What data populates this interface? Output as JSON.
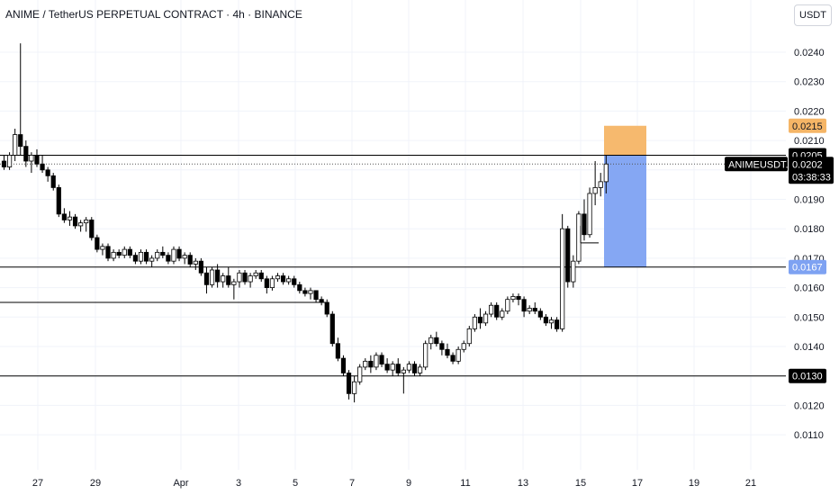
{
  "header": {
    "title": "ANIME / TetherUS PERPETUAL CONTRACT · 4h · BINANCE",
    "currency_button": "USDT"
  },
  "colors": {
    "up": "#ffffff",
    "down": "#000000",
    "candle_outline": "#000000",
    "grid": "#f0f3fa",
    "target_zone": "#f5b566",
    "stop_zone": "#7ea2f2",
    "hline": "#000000"
  },
  "price_axis": {
    "ticks": [
      "0.0240",
      "0.0230",
      "0.0220",
      "0.0210",
      "0.0200",
      "0.0190",
      "0.0180",
      "0.0170",
      "0.0160",
      "0.0150",
      "0.0140",
      "0.0130",
      "0.0120",
      "0.0110"
    ],
    "tick_values": [
      0.024,
      0.023,
      0.022,
      0.021,
      0.02,
      0.019,
      0.018,
      0.017,
      0.016,
      0.015,
      0.014,
      0.013,
      0.012,
      0.011
    ]
  },
  "date_axis": {
    "labels": [
      "27",
      "29",
      "Apr",
      "3",
      "5",
      "7",
      "9",
      "11",
      "13",
      "15",
      "17",
      "19",
      "21"
    ]
  },
  "price_tags": {
    "target": {
      "label": "0.0215",
      "value": 0.0215
    },
    "last_price": {
      "label": "0.0202",
      "value": 0.0202
    },
    "countdown": "03:38:33",
    "symbol": "ANIMEUSDT.P",
    "resistance": {
      "label": "0.0205",
      "value": 0.0205
    },
    "stop": {
      "label": "0.0167",
      "value": 0.0167
    },
    "support": {
      "label": "0.0130",
      "value": 0.013
    }
  },
  "horizontal_lines": [
    0.0205,
    0.0167,
    0.0155,
    0.013
  ],
  "position_tool": {
    "entry": 0.0205,
    "target": 0.0215,
    "stop": 0.0167
  },
  "chart_data": {
    "type": "candlestick",
    "timeframe": "4h",
    "ohlc": [
      [
        0.0203,
        0.0205,
        0.02,
        0.0201
      ],
      [
        0.0201,
        0.0206,
        0.02,
        0.0205
      ],
      [
        0.0205,
        0.0214,
        0.0203,
        0.0212
      ],
      [
        0.0212,
        0.0243,
        0.0205,
        0.0208
      ],
      [
        0.0208,
        0.021,
        0.0201,
        0.0203
      ],
      [
        0.0203,
        0.0206,
        0.0199,
        0.0205
      ],
      [
        0.0205,
        0.0207,
        0.0201,
        0.0202
      ],
      [
        0.0202,
        0.0205,
        0.0199,
        0.02
      ],
      [
        0.02,
        0.0201,
        0.0196,
        0.0198
      ],
      [
        0.0198,
        0.0199,
        0.0193,
        0.0194
      ],
      [
        0.0194,
        0.0195,
        0.0184,
        0.0185
      ],
      [
        0.0185,
        0.0187,
        0.0182,
        0.0183
      ],
      [
        0.0183,
        0.0186,
        0.0181,
        0.0184
      ],
      [
        0.0184,
        0.0185,
        0.018,
        0.0181
      ],
      [
        0.0181,
        0.0183,
        0.0179,
        0.0182
      ],
      [
        0.0182,
        0.0184,
        0.0179,
        0.0183
      ],
      [
        0.0183,
        0.0184,
        0.0176,
        0.0177
      ],
      [
        0.0177,
        0.0178,
        0.0172,
        0.0173
      ],
      [
        0.0173,
        0.0175,
        0.0171,
        0.0174
      ],
      [
        0.0174,
        0.0175,
        0.0169,
        0.017
      ],
      [
        0.017,
        0.0173,
        0.0169,
        0.0172
      ],
      [
        0.0172,
        0.0173,
        0.017,
        0.0171
      ],
      [
        0.0171,
        0.0174,
        0.017,
        0.0173
      ],
      [
        0.0173,
        0.0174,
        0.017,
        0.0171
      ],
      [
        0.0171,
        0.0172,
        0.0168,
        0.0169
      ],
      [
        0.0169,
        0.0173,
        0.0168,
        0.0172
      ],
      [
        0.0172,
        0.0173,
        0.0168,
        0.0169
      ],
      [
        0.0169,
        0.0171,
        0.0167,
        0.017
      ],
      [
        0.017,
        0.0173,
        0.0169,
        0.0172
      ],
      [
        0.0172,
        0.0174,
        0.017,
        0.0171
      ],
      [
        0.0171,
        0.0172,
        0.0168,
        0.0169
      ],
      [
        0.0169,
        0.0174,
        0.0168,
        0.0173
      ],
      [
        0.0173,
        0.0174,
        0.0169,
        0.017
      ],
      [
        0.017,
        0.0172,
        0.0168,
        0.0171
      ],
      [
        0.0171,
        0.0172,
        0.0167,
        0.0168
      ],
      [
        0.0168,
        0.017,
        0.0166,
        0.0169
      ],
      [
        0.0169,
        0.017,
        0.0164,
        0.0165
      ],
      [
        0.0165,
        0.0167,
        0.0158,
        0.0161
      ],
      [
        0.0161,
        0.0167,
        0.016,
        0.0166
      ],
      [
        0.0166,
        0.0168,
        0.016,
        0.0162
      ],
      [
        0.0162,
        0.0165,
        0.016,
        0.0164
      ],
      [
        0.0164,
        0.0167,
        0.016,
        0.0161
      ],
      [
        0.0161,
        0.0163,
        0.0156,
        0.0162
      ],
      [
        0.0162,
        0.0166,
        0.016,
        0.0165
      ],
      [
        0.0165,
        0.0166,
        0.0161,
        0.0162
      ],
      [
        0.0162,
        0.0165,
        0.016,
        0.0164
      ],
      [
        0.0164,
        0.0166,
        0.0163,
        0.0165
      ],
      [
        0.0165,
        0.0166,
        0.0162,
        0.0163
      ],
      [
        0.0163,
        0.0164,
        0.0158,
        0.016
      ],
      [
        0.016,
        0.0164,
        0.0159,
        0.0163
      ],
      [
        0.0163,
        0.0165,
        0.0162,
        0.0164
      ],
      [
        0.0164,
        0.0165,
        0.0161,
        0.0162
      ],
      [
        0.0162,
        0.0164,
        0.0161,
        0.0163
      ],
      [
        0.0163,
        0.0164,
        0.016,
        0.0161
      ],
      [
        0.0161,
        0.0162,
        0.0158,
        0.0159
      ],
      [
        0.0159,
        0.016,
        0.0157,
        0.0158
      ],
      [
        0.0158,
        0.016,
        0.0156,
        0.0159
      ],
      [
        0.0159,
        0.0159,
        0.0155,
        0.0156
      ],
      [
        0.0156,
        0.0157,
        0.0154,
        0.0155
      ],
      [
        0.0155,
        0.0156,
        0.015,
        0.0151
      ],
      [
        0.0151,
        0.0152,
        0.014,
        0.0141
      ],
      [
        0.0141,
        0.0143,
        0.0135,
        0.0136
      ],
      [
        0.0136,
        0.0137,
        0.013,
        0.0131
      ],
      [
        0.0131,
        0.0132,
        0.0122,
        0.0124
      ],
      [
        0.0124,
        0.013,
        0.0121,
        0.0128
      ],
      [
        0.0128,
        0.0134,
        0.0127,
        0.0133
      ],
      [
        0.0133,
        0.0136,
        0.0132,
        0.0135
      ],
      [
        0.0135,
        0.0137,
        0.0131,
        0.0133
      ],
      [
        0.0133,
        0.0138,
        0.0132,
        0.0137
      ],
      [
        0.0137,
        0.0138,
        0.0133,
        0.0134
      ],
      [
        0.0134,
        0.0136,
        0.0131,
        0.0132
      ],
      [
        0.0132,
        0.0135,
        0.013,
        0.0134
      ],
      [
        0.0134,
        0.0136,
        0.013,
        0.0131
      ],
      [
        0.0131,
        0.0133,
        0.0124,
        0.0132
      ],
      [
        0.0132,
        0.0135,
        0.0131,
        0.0134
      ],
      [
        0.0134,
        0.0135,
        0.013,
        0.0131
      ],
      [
        0.0131,
        0.0134,
        0.013,
        0.0133
      ],
      [
        0.0133,
        0.0142,
        0.0132,
        0.0141
      ],
      [
        0.0141,
        0.0144,
        0.0139,
        0.0143
      ],
      [
        0.0143,
        0.0145,
        0.014,
        0.0141
      ],
      [
        0.0141,
        0.0142,
        0.0137,
        0.0139
      ],
      [
        0.0139,
        0.0141,
        0.0136,
        0.0137
      ],
      [
        0.0137,
        0.0138,
        0.0134,
        0.0135
      ],
      [
        0.0135,
        0.014,
        0.0134,
        0.0139
      ],
      [
        0.0139,
        0.0142,
        0.0138,
        0.0141
      ],
      [
        0.0141,
        0.0147,
        0.014,
        0.0146
      ],
      [
        0.0146,
        0.0151,
        0.0145,
        0.015
      ],
      [
        0.015,
        0.0153,
        0.0146,
        0.0148
      ],
      [
        0.0148,
        0.0152,
        0.0147,
        0.0151
      ],
      [
        0.0151,
        0.0155,
        0.015,
        0.0154
      ],
      [
        0.0154,
        0.0155,
        0.0149,
        0.015
      ],
      [
        0.015,
        0.0153,
        0.0149,
        0.0152
      ],
      [
        0.0152,
        0.0157,
        0.0151,
        0.0156
      ],
      [
        0.0156,
        0.0158,
        0.0155,
        0.0157
      ],
      [
        0.0157,
        0.0158,
        0.0154,
        0.0156
      ],
      [
        0.0156,
        0.0157,
        0.015,
        0.0152
      ],
      [
        0.0152,
        0.0154,
        0.0151,
        0.0153
      ],
      [
        0.0153,
        0.0155,
        0.0151,
        0.0152
      ],
      [
        0.0152,
        0.0153,
        0.0149,
        0.015
      ],
      [
        0.015,
        0.0151,
        0.0147,
        0.0148
      ],
      [
        0.0148,
        0.015,
        0.0146,
        0.0149
      ],
      [
        0.0149,
        0.015,
        0.0145,
        0.0146
      ],
      [
        0.0146,
        0.0185,
        0.0145,
        0.018
      ],
      [
        0.018,
        0.0181,
        0.016,
        0.0162
      ],
      [
        0.0162,
        0.0171,
        0.016,
        0.0169
      ],
      [
        0.0169,
        0.0186,
        0.0168,
        0.0185
      ],
      [
        0.0185,
        0.019,
        0.0176,
        0.0178
      ],
      [
        0.0178,
        0.0194,
        0.0177,
        0.0192
      ],
      [
        0.0192,
        0.0203,
        0.0188,
        0.0194
      ],
      [
        0.0194,
        0.0199,
        0.0191,
        0.0196
      ],
      [
        0.0196,
        0.0205,
        0.0192,
        0.0202
      ]
    ]
  }
}
